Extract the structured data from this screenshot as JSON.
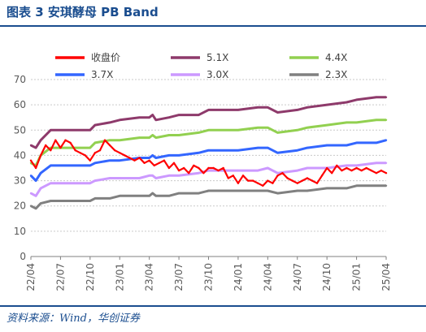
{
  "header": {
    "title": "图表 3 安琪酵母 PB Band"
  },
  "footer": {
    "source": "资料来源：Wind，华创证券"
  },
  "chart_data": {
    "type": "line",
    "title": "图表 3 安琪酵母 PB Band",
    "ylim": [
      0,
      70
    ],
    "yticks": [
      0,
      10,
      20,
      30,
      40,
      50,
      60,
      70
    ],
    "grid": true,
    "legend_placement": "top",
    "x_tick_labels": [
      "22/04",
      "22/07",
      "22/10",
      "23/01",
      "23/04",
      "23/07",
      "23/10",
      "24/01",
      "24/04",
      "24/07",
      "24/10",
      "25/01",
      "25/04"
    ],
    "x_start": "22/04",
    "x_end": "25/04",
    "series": [
      {
        "name": "收盘价",
        "color": "#ff0000",
        "points": [
          [
            "22/04",
            38
          ],
          [
            "22/04",
            35
          ],
          [
            "22/05",
            40
          ],
          [
            "22/05",
            44
          ],
          [
            "22/06",
            42
          ],
          [
            "22/06",
            46
          ],
          [
            "22/07",
            43
          ],
          [
            "22/07",
            46
          ],
          [
            "22/08",
            45
          ],
          [
            "22/08",
            42
          ],
          [
            "22/09",
            41
          ],
          [
            "22/09",
            40
          ],
          [
            "22/10",
            38
          ],
          [
            "22/10",
            41
          ],
          [
            "22/11",
            42
          ],
          [
            "22/11",
            46
          ],
          [
            "22/12",
            44
          ],
          [
            "22/12",
            42
          ],
          [
            "23/01",
            41
          ],
          [
            "23/01",
            40
          ],
          [
            "23/02",
            39
          ],
          [
            "23/02",
            38
          ],
          [
            "23/03",
            39
          ],
          [
            "23/03",
            37
          ],
          [
            "23/04",
            38
          ],
          [
            "23/04",
            36
          ],
          [
            "23/05",
            37
          ],
          [
            "23/05",
            38
          ],
          [
            "23/06",
            35
          ],
          [
            "23/06",
            37
          ],
          [
            "23/07",
            34
          ],
          [
            "23/07",
            35
          ],
          [
            "23/08",
            33
          ],
          [
            "23/08",
            36
          ],
          [
            "23/09",
            35
          ],
          [
            "23/09",
            33
          ],
          [
            "23/10",
            35
          ],
          [
            "23/10",
            35
          ],
          [
            "23/11",
            34
          ],
          [
            "23/11",
            35
          ],
          [
            "23/12",
            31
          ],
          [
            "23/12",
            32
          ],
          [
            "24/01",
            29
          ],
          [
            "24/01",
            32
          ],
          [
            "24/02",
            30
          ],
          [
            "24/02",
            30
          ],
          [
            "24/03",
            29
          ],
          [
            "24/03",
            28
          ],
          [
            "24/04",
            30
          ],
          [
            "24/04",
            29
          ],
          [
            "24/05",
            32
          ],
          [
            "24/05",
            33
          ],
          [
            "24/06",
            31
          ],
          [
            "24/06",
            30
          ],
          [
            "24/07",
            29
          ],
          [
            "24/07",
            30
          ],
          [
            "24/08",
            31
          ],
          [
            "24/08",
            30
          ],
          [
            "24/09",
            29
          ],
          [
            "24/09",
            32
          ],
          [
            "24/10",
            35
          ],
          [
            "24/10",
            33
          ],
          [
            "24/11",
            36
          ],
          [
            "24/11",
            34
          ],
          [
            "24/12",
            35
          ],
          [
            "24/12",
            34
          ],
          [
            "25/01",
            35
          ],
          [
            "25/01",
            34
          ],
          [
            "25/02",
            35
          ],
          [
            "25/02",
            34
          ],
          [
            "25/03",
            33
          ],
          [
            "25/03",
            34
          ],
          [
            "25/04",
            33
          ]
        ]
      },
      {
        "name": "5.1X",
        "color": "#8e3a6b",
        "points": [
          [
            "22/04",
            44
          ],
          [
            "22/04",
            43
          ],
          [
            "22/05",
            46
          ],
          [
            "22/06",
            50
          ],
          [
            "22/07",
            50
          ],
          [
            "22/09",
            50
          ],
          [
            "22/10",
            50
          ],
          [
            "22/10",
            52
          ],
          [
            "22/12",
            53
          ],
          [
            "23/01",
            54
          ],
          [
            "23/03",
            55
          ],
          [
            "23/04",
            55
          ],
          [
            "23/04",
            56
          ],
          [
            "23/04",
            54
          ],
          [
            "23/06",
            55
          ],
          [
            "23/07",
            56
          ],
          [
            "23/09",
            56
          ],
          [
            "23/10",
            58
          ],
          [
            "23/12",
            58
          ],
          [
            "24/01",
            58
          ],
          [
            "24/03",
            59
          ],
          [
            "24/04",
            59
          ],
          [
            "24/05",
            57
          ],
          [
            "24/07",
            58
          ],
          [
            "24/08",
            59
          ],
          [
            "24/10",
            60
          ],
          [
            "24/12",
            61
          ],
          [
            "25/01",
            62
          ],
          [
            "25/03",
            63
          ],
          [
            "25/04",
            63
          ]
        ]
      },
      {
        "name": "4.4X",
        "color": "#92d050",
        "points": [
          [
            "22/04",
            37
          ],
          [
            "22/04",
            36
          ],
          [
            "22/05",
            40
          ],
          [
            "22/06",
            43
          ],
          [
            "22/07",
            43
          ],
          [
            "22/09",
            43
          ],
          [
            "22/10",
            43
          ],
          [
            "22/10",
            45
          ],
          [
            "22/12",
            46
          ],
          [
            "23/01",
            46
          ],
          [
            "23/03",
            47
          ],
          [
            "23/04",
            47
          ],
          [
            "23/04",
            48
          ],
          [
            "23/04",
            47
          ],
          [
            "23/06",
            48
          ],
          [
            "23/07",
            48
          ],
          [
            "23/09",
            49
          ],
          [
            "23/10",
            50
          ],
          [
            "23/12",
            50
          ],
          [
            "24/01",
            50
          ],
          [
            "24/03",
            51
          ],
          [
            "24/04",
            51
          ],
          [
            "24/05",
            49
          ],
          [
            "24/07",
            50
          ],
          [
            "24/08",
            51
          ],
          [
            "24/10",
            52
          ],
          [
            "24/12",
            53
          ],
          [
            "25/01",
            53
          ],
          [
            "25/03",
            54
          ],
          [
            "25/04",
            54
          ]
        ]
      },
      {
        "name": "3.7X",
        "color": "#3366ff",
        "points": [
          [
            "22/04",
            32
          ],
          [
            "22/04",
            30
          ],
          [
            "22/05",
            33
          ],
          [
            "22/06",
            36
          ],
          [
            "22/07",
            36
          ],
          [
            "22/09",
            36
          ],
          [
            "22/10",
            36
          ],
          [
            "22/10",
            37
          ],
          [
            "22/12",
            38
          ],
          [
            "23/01",
            38
          ],
          [
            "23/03",
            39
          ],
          [
            "23/04",
            39
          ],
          [
            "23/04",
            40
          ],
          [
            "23/04",
            39
          ],
          [
            "23/06",
            40
          ],
          [
            "23/07",
            40
          ],
          [
            "23/09",
            41
          ],
          [
            "23/10",
            42
          ],
          [
            "23/12",
            42
          ],
          [
            "24/01",
            42
          ],
          [
            "24/03",
            43
          ],
          [
            "24/04",
            43
          ],
          [
            "24/05",
            41
          ],
          [
            "24/07",
            42
          ],
          [
            "24/08",
            43
          ],
          [
            "24/10",
            44
          ],
          [
            "24/12",
            44
          ],
          [
            "25/01",
            45
          ],
          [
            "25/03",
            45
          ],
          [
            "25/04",
            46
          ]
        ]
      },
      {
        "name": "3.0X",
        "color": "#cc99ff",
        "points": [
          [
            "22/04",
            25
          ],
          [
            "22/04",
            24
          ],
          [
            "22/05",
            27
          ],
          [
            "22/06",
            29
          ],
          [
            "22/07",
            29
          ],
          [
            "22/09",
            29
          ],
          [
            "22/10",
            29
          ],
          [
            "22/10",
            30
          ],
          [
            "22/12",
            31
          ],
          [
            "23/01",
            31
          ],
          [
            "23/03",
            31
          ],
          [
            "23/04",
            32
          ],
          [
            "23/04",
            32
          ],
          [
            "23/04",
            31
          ],
          [
            "23/06",
            32
          ],
          [
            "23/07",
            32
          ],
          [
            "23/09",
            33
          ],
          [
            "23/10",
            34
          ],
          [
            "23/12",
            34
          ],
          [
            "24/01",
            34
          ],
          [
            "24/03",
            34
          ],
          [
            "24/04",
            35
          ],
          [
            "24/05",
            33
          ],
          [
            "24/07",
            34
          ],
          [
            "24/08",
            35
          ],
          [
            "24/10",
            35
          ],
          [
            "24/12",
            36
          ],
          [
            "25/01",
            36
          ],
          [
            "25/03",
            37
          ],
          [
            "25/04",
            37
          ]
        ]
      },
      {
        "name": "2.3X",
        "color": "#808080",
        "points": [
          [
            "22/04",
            20
          ],
          [
            "22/04",
            19
          ],
          [
            "22/05",
            21
          ],
          [
            "22/06",
            22
          ],
          [
            "22/07",
            22
          ],
          [
            "22/09",
            22
          ],
          [
            "22/10",
            22
          ],
          [
            "22/10",
            23
          ],
          [
            "22/12",
            23
          ],
          [
            "23/01",
            24
          ],
          [
            "23/03",
            24
          ],
          [
            "23/04",
            24
          ],
          [
            "23/04",
            25
          ],
          [
            "23/04",
            24
          ],
          [
            "23/06",
            24
          ],
          [
            "23/07",
            25
          ],
          [
            "23/09",
            25
          ],
          [
            "23/10",
            26
          ],
          [
            "23/12",
            26
          ],
          [
            "24/01",
            26
          ],
          [
            "24/03",
            26
          ],
          [
            "24/04",
            26
          ],
          [
            "24/05",
            25
          ],
          [
            "24/07",
            26
          ],
          [
            "24/08",
            26
          ],
          [
            "24/10",
            27
          ],
          [
            "24/12",
            27
          ],
          [
            "25/01",
            28
          ],
          [
            "25/03",
            28
          ],
          [
            "25/04",
            28
          ]
        ]
      }
    ]
  }
}
